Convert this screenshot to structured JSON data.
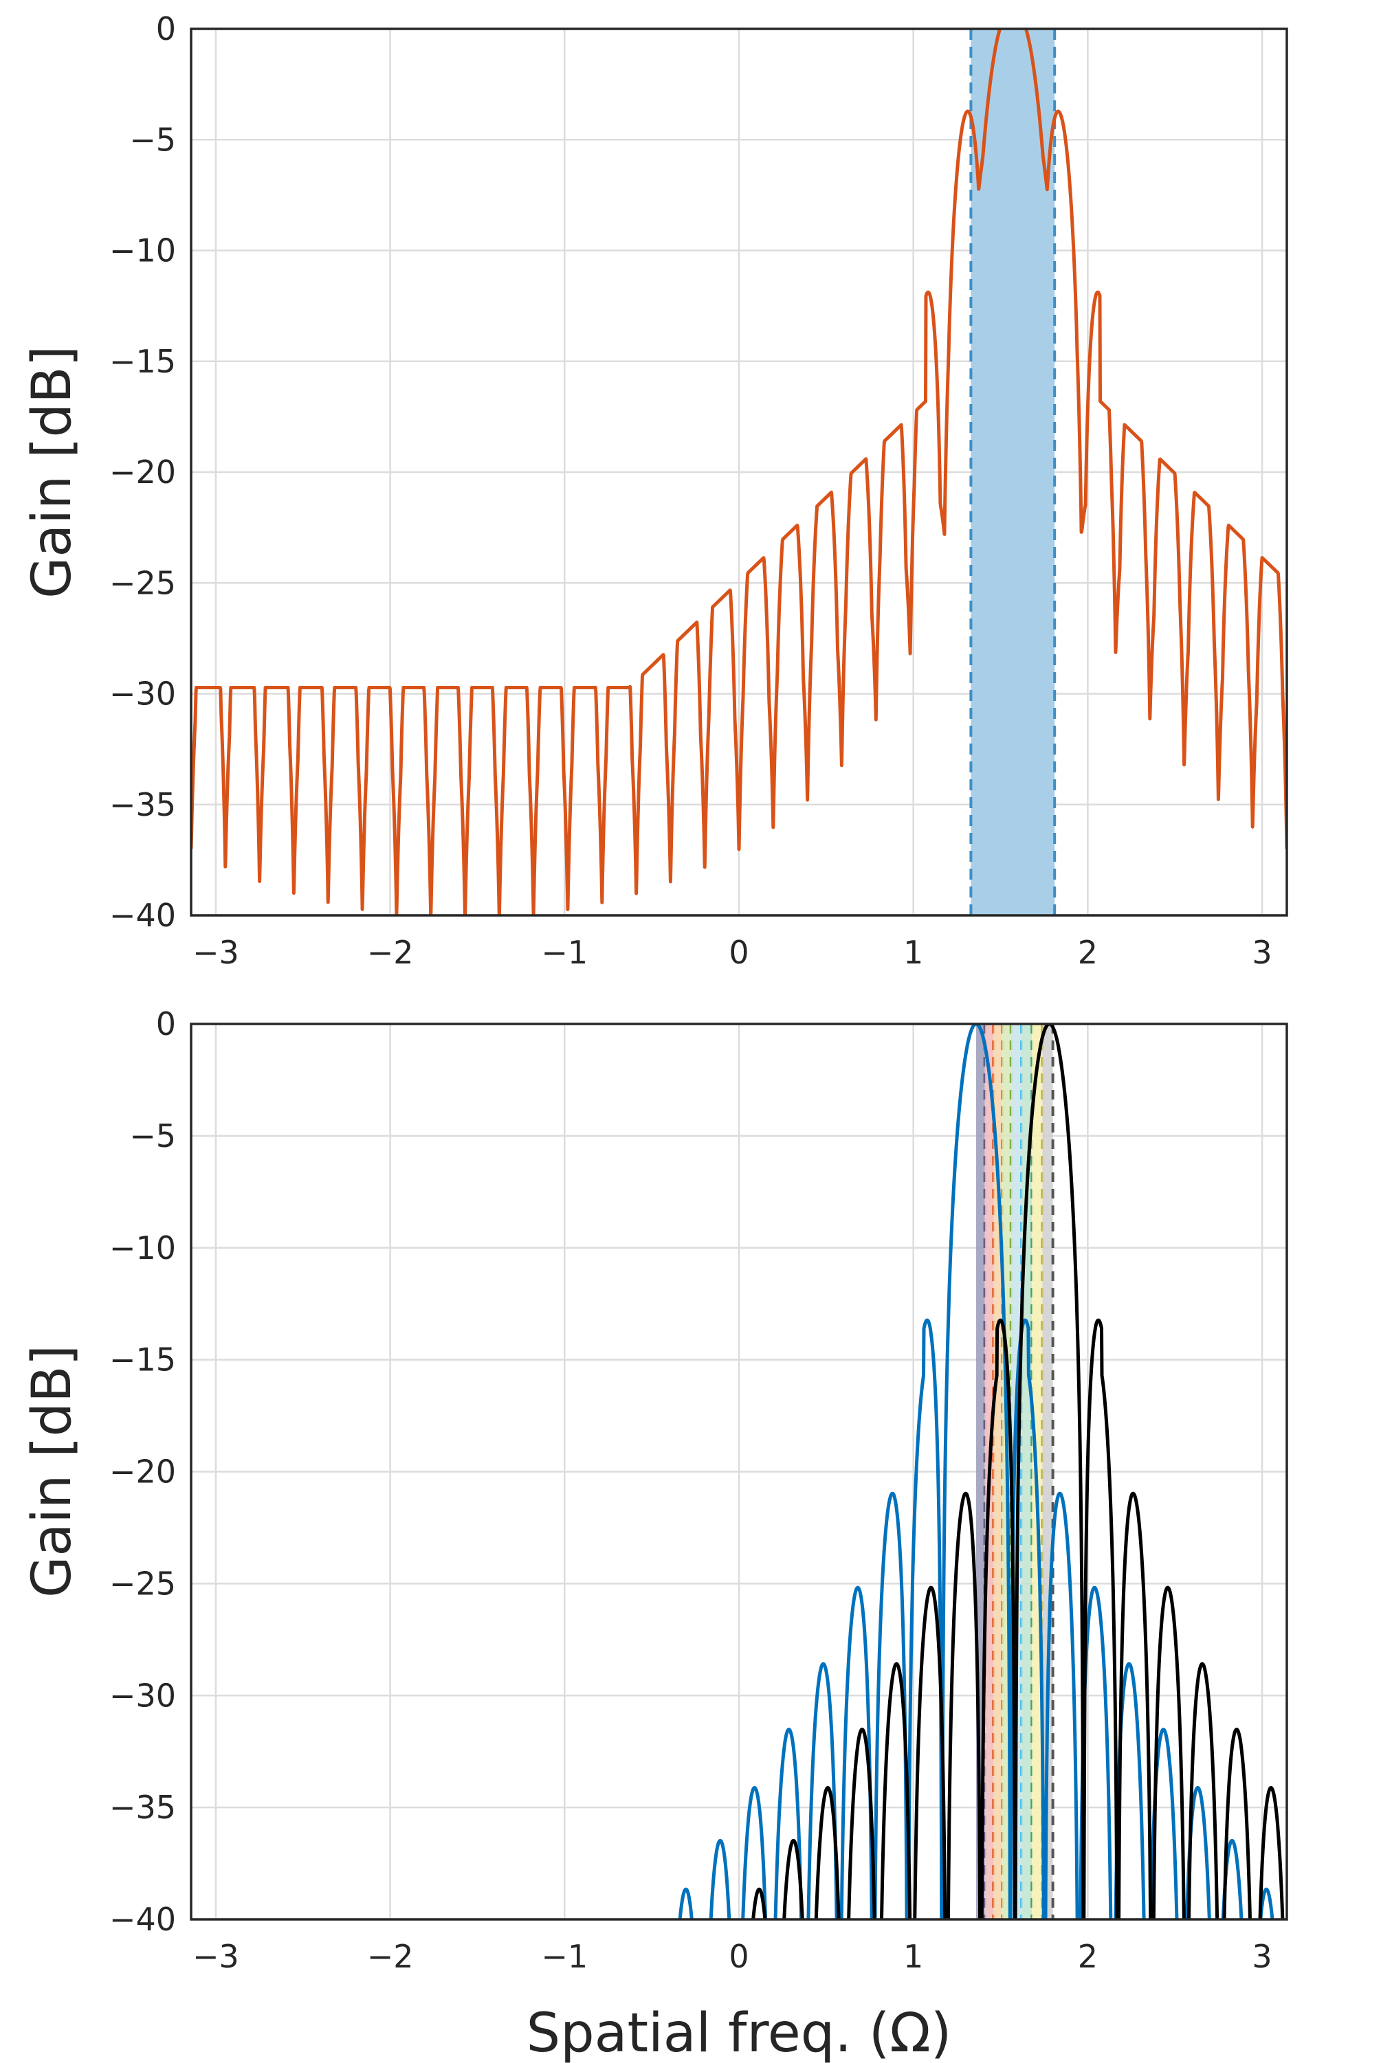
{
  "chart_data": [
    {
      "type": "line",
      "xlabel": "",
      "ylabel": "Gain [dB]",
      "xlim": [
        -3.1416,
        3.1416
      ],
      "ylim": [
        -40,
        0
      ],
      "xticks": [
        -3,
        -2,
        -1,
        0,
        1,
        2,
        3
      ],
      "xtick_labels": [
        "−3",
        "−2",
        "−1",
        "0",
        "1",
        "2",
        "3"
      ],
      "yticks": [
        0,
        -5,
        -10,
        -15,
        -20,
        -25,
        -30,
        -35,
        -40
      ],
      "ytick_labels": [
        "0",
        "−5",
        "−10",
        "−15",
        "−20",
        "−25",
        "−30",
        "−35",
        "−40"
      ],
      "grid": true,
      "shaded_band": {
        "x": [
          1.33,
          1.81
        ],
        "color": "#a9cfe8",
        "edge_color": "#3d8fc6",
        "edge_style": "dashed"
      },
      "series": [
        {
          "color": "#d95319",
          "peak_x": 1.571,
          "peak_db": 0,
          "shoulder_db": -7.7,
          "floor_db": -30.5,
          "lobe_width": 0.18,
          "dip_x": [
            1.15,
            1.99
          ]
        }
      ]
    },
    {
      "type": "line",
      "xlabel": "Spatial freq. (Ω)",
      "ylabel": "Gain [dB]",
      "xlim": [
        -3.1416,
        3.1416
      ],
      "ylim": [
        -40,
        0
      ],
      "xticks": [
        -3,
        -2,
        -1,
        0,
        1,
        2,
        3
      ],
      "xtick_labels": [
        "−3",
        "−2",
        "−1",
        "0",
        "1",
        "2",
        "3"
      ],
      "yticks": [
        0,
        -5,
        -10,
        -15,
        -20,
        -25,
        -30,
        -35,
        -40
      ],
      "ytick_labels": [
        "0",
        "−5",
        "−10",
        "−15",
        "−20",
        "−25",
        "−30",
        "−35",
        "−40"
      ],
      "grid": true,
      "bands": [
        {
          "x": [
            1.36,
            1.41
          ],
          "color": "#9a9ab8",
          "line_color": "#4b4b78"
        },
        {
          "x": [
            1.41,
            1.46
          ],
          "color": "#f2b8b8",
          "line_color": "#d95319"
        },
        {
          "x": [
            1.46,
            1.51
          ],
          "color": "#f7d3a8",
          "line_color": "#e38b2c"
        },
        {
          "x": [
            1.51,
            1.56
          ],
          "color": "#d8e9b8",
          "line_color": "#77ac30"
        },
        {
          "x": [
            1.56,
            1.62
          ],
          "color": "#c8e4ea",
          "line_color": "#4dbeee"
        },
        {
          "x": [
            1.62,
            1.68
          ],
          "color": "#bfe4cf",
          "line_color": "#3aa37a"
        },
        {
          "x": [
            1.68,
            1.74
          ],
          "color": "#f6f0b0",
          "line_color": "#c9b200"
        },
        {
          "x": [
            1.74,
            1.8
          ],
          "color": "#cfcfcf",
          "line_color": "#555555"
        }
      ],
      "series": [
        {
          "color": "#0072bd",
          "peak_x": 1.36,
          "peak_db": 0,
          "first_sidelobe_db": -13.3,
          "floor_db": -30.0,
          "lobe_width": 0.2
        },
        {
          "color": "#000000",
          "peak_x": 1.78,
          "peak_db": 0,
          "first_sidelobe_db": -13.3,
          "floor_db": -30.5,
          "lobe_width": 0.2
        }
      ]
    }
  ]
}
